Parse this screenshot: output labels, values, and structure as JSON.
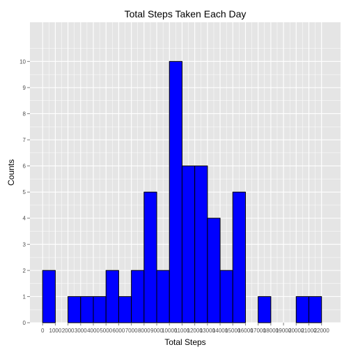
{
  "chart_data": {
    "type": "bar",
    "title": "Total Steps Taken Each Day",
    "xlabel": "Total Steps",
    "ylabel": "Counts",
    "bin_width": 1000,
    "bins": [
      {
        "start": 0,
        "end": 1000,
        "count": 2
      },
      {
        "start": 1000,
        "end": 2000,
        "count": 0
      },
      {
        "start": 2000,
        "end": 3000,
        "count": 1
      },
      {
        "start": 3000,
        "end": 4000,
        "count": 1
      },
      {
        "start": 4000,
        "end": 5000,
        "count": 1
      },
      {
        "start": 5000,
        "end": 6000,
        "count": 2
      },
      {
        "start": 6000,
        "end": 7000,
        "count": 1
      },
      {
        "start": 7000,
        "end": 8000,
        "count": 2
      },
      {
        "start": 8000,
        "end": 9000,
        "count": 5
      },
      {
        "start": 9000,
        "end": 10000,
        "count": 2
      },
      {
        "start": 10000,
        "end": 11000,
        "count": 10
      },
      {
        "start": 11000,
        "end": 12000,
        "count": 6
      },
      {
        "start": 12000,
        "end": 13000,
        "count": 6
      },
      {
        "start": 13000,
        "end": 14000,
        "count": 4
      },
      {
        "start": 14000,
        "end": 15000,
        "count": 2
      },
      {
        "start": 15000,
        "end": 16000,
        "count": 5
      },
      {
        "start": 16000,
        "end": 17000,
        "count": 0
      },
      {
        "start": 17000,
        "end": 18000,
        "count": 1
      },
      {
        "start": 18000,
        "end": 19000,
        "count": 0
      },
      {
        "start": 19000,
        "end": 20000,
        "count": 0
      },
      {
        "start": 20000,
        "end": 21000,
        "count": 1
      },
      {
        "start": 21000,
        "end": 22000,
        "count": 1
      }
    ],
    "x_ticks": [
      "0",
      "1000",
      "2000",
      "3000",
      "4000",
      "5000",
      "6000",
      "7000",
      "8000",
      "9000",
      "10000",
      "11000",
      "12000",
      "13000",
      "14000",
      "15000",
      "16000",
      "17000",
      "18000",
      "19000",
      "20000",
      "21000",
      "22000"
    ],
    "y_ticks": [
      "0",
      "1",
      "2",
      "3",
      "4",
      "5",
      "6",
      "7",
      "8",
      "9",
      "10"
    ],
    "xlim": [
      -1000,
      23500
    ],
    "ylim": [
      0,
      11.5
    ],
    "grid": true,
    "legend": "none",
    "colors": {
      "bar_fill": "#0000ff",
      "bar_outline": "#000000",
      "panel_background": "#e5e5e5",
      "grid_line": "#ffffff"
    }
  }
}
